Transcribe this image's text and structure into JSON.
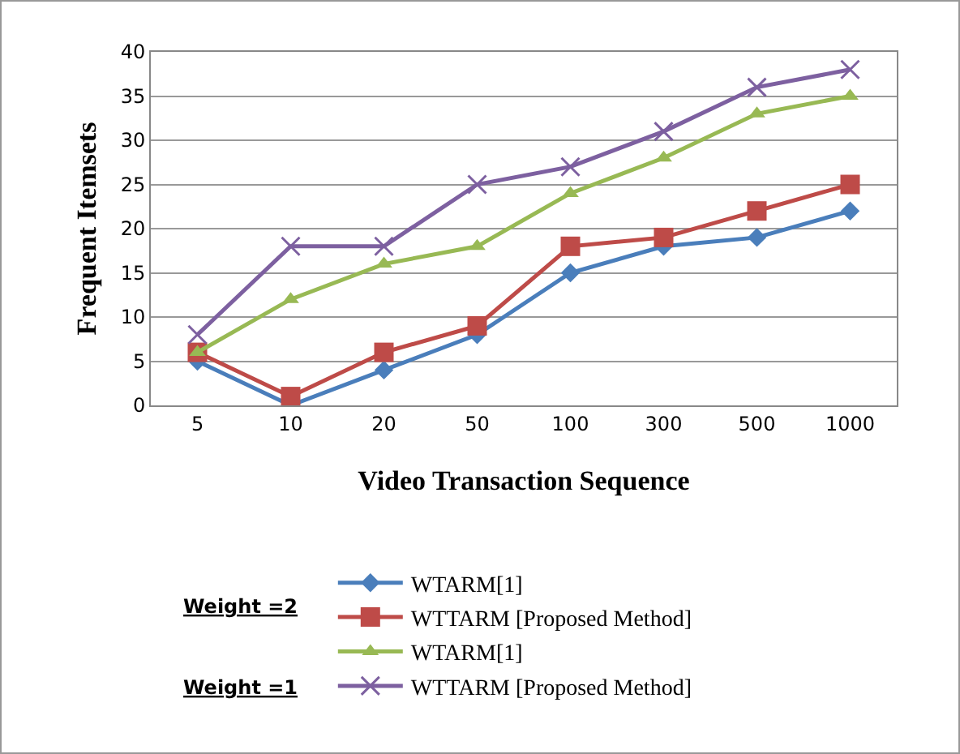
{
  "chart_data": {
    "type": "line",
    "xlabel": "Video Transaction Sequence",
    "ylabel": "Frequent Itemsets",
    "categories": [
      "5",
      "10",
      "20",
      "50",
      "100",
      "300",
      "500",
      "1000"
    ],
    "series": [
      {
        "name": "WTARM[1]",
        "color": "#4a7ebb",
        "marker": "diamond",
        "values": [
          5,
          0,
          4,
          8,
          15,
          18,
          19,
          22
        ]
      },
      {
        "name": "WTTARM [Proposed Method]",
        "color": "#be4b48",
        "marker": "square",
        "values": [
          6,
          1,
          6,
          9,
          18,
          19,
          22,
          25
        ]
      },
      {
        "name": "WTARM[1]",
        "color": "#98b954",
        "marker": "triangle",
        "values": [
          6,
          12,
          16,
          18,
          24,
          28,
          33,
          35
        ]
      },
      {
        "name": "WTTARM [Proposed Method]",
        "color": "#7d60a0",
        "marker": "cross",
        "values": [
          8,
          18,
          18,
          25,
          27,
          31,
          36,
          38
        ]
      }
    ],
    "ylim": [
      0,
      40
    ],
    "yticks": [
      0,
      5,
      10,
      15,
      20,
      25,
      30,
      35,
      40
    ],
    "grid": "y",
    "legend": "bottom",
    "line_style": "solid",
    "annotations": [
      "Weight =2",
      "Weight =1"
    ]
  }
}
